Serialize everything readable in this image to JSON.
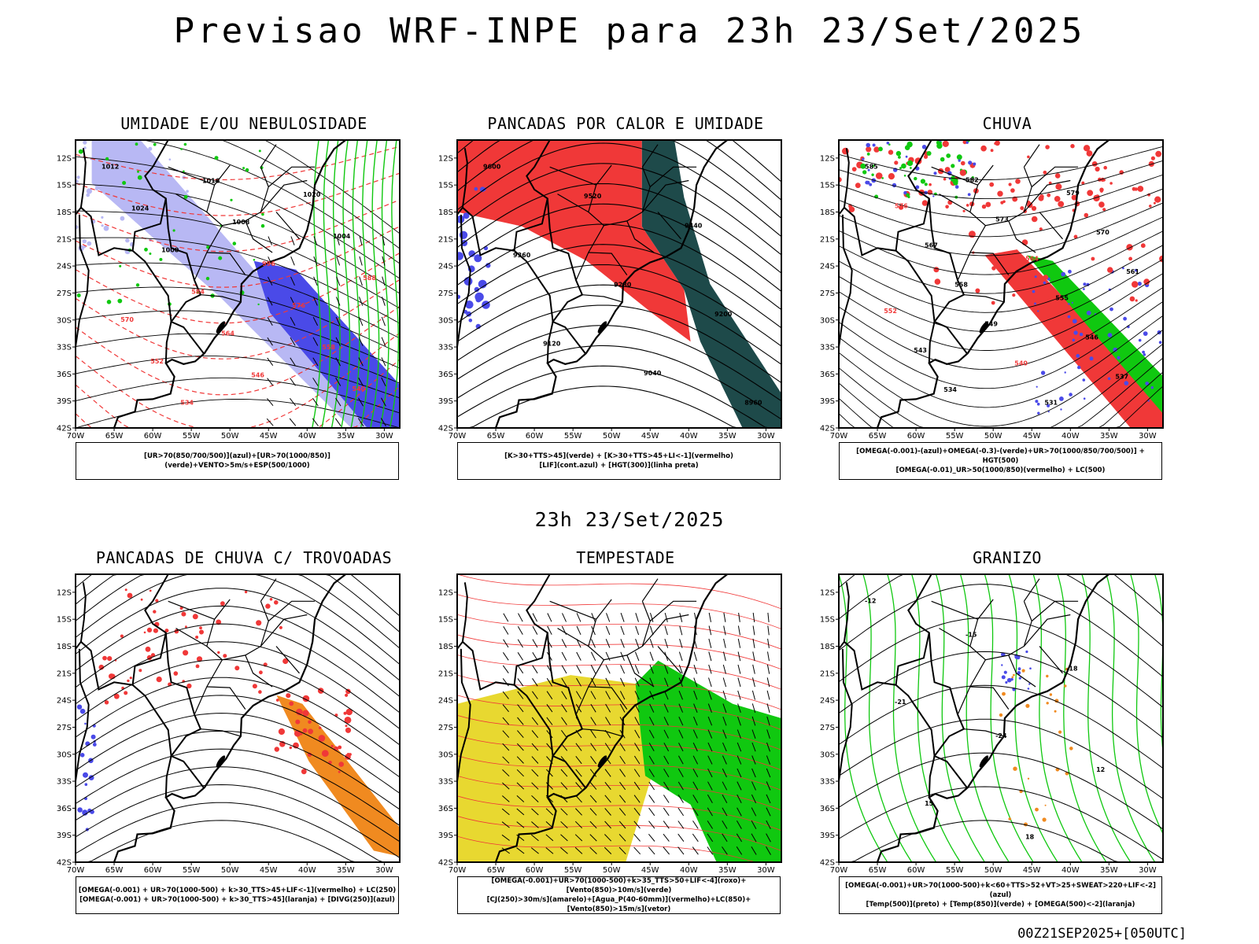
{
  "page": {
    "title": "Previsao WRF-INPE  para 23h 23/Set/2025",
    "middle_date": "23h 23/Set/2025",
    "footer_run": "00Z21SEP2025+[050UTC]"
  },
  "axes": {
    "lon_labels": [
      "70W",
      "65W",
      "60W",
      "55W",
      "50W",
      "45W",
      "40W",
      "35W",
      "30W"
    ],
    "lat_labels": [
      "12S",
      "15S",
      "18S",
      "21S",
      "24S",
      "27S",
      "30S",
      "33S",
      "36S",
      "39S",
      "42S"
    ]
  },
  "colors": {
    "light_blue": "#b8b8f4",
    "blue": "#4a4ae8",
    "green": "#10c810",
    "red": "#f03838",
    "dark_teal": "#1e4a4a",
    "yellow": "#e8d830",
    "orange": "#f08a20"
  },
  "chart_data": [
    {
      "type": "map",
      "title": "UMIDADE E/OU NEBULOSIDADE",
      "legend": [
        "[UR>70(850/700/500)](azul)+[UR>70(1000/850)](verde)+VENTO>5m/s+ESP(500/1000)"
      ],
      "contour_labels": [
        "1012",
        "1016",
        "1020",
        "1024",
        "1008",
        "1004",
        "1000",
        "996",
        "588",
        "584",
        "576",
        "570",
        "564",
        "558",
        "552",
        "546",
        "540",
        "534"
      ]
    },
    {
      "type": "map",
      "title": "PANCADAS POR CALOR E UMIDADE",
      "legend": [
        "[K>30+TTS>45](verde) + [K>30+TTS>45+LI<-1](vermelho)",
        "[LIF](cont.azul) + [HGT(300)](linha preta)"
      ],
      "contour_labels": [
        "9600",
        "9520",
        "9440",
        "9360",
        "9280",
        "9200",
        "9120",
        "9040",
        "8960"
      ]
    },
    {
      "type": "map",
      "title": "CHUVA",
      "legend": [
        "[OMEGA(-0.001)-(azul)+OMEGA(-0.3)-(verde)+UR>70(1000/850/700/500)] + HGT(500)",
        "[OMEGA(-0.01)_UR>50(1000/850)(vermelho) + LC(500)"
      ],
      "contour_labels": [
        "585",
        "582",
        "579",
        "576",
        "573",
        "570",
        "567",
        "564",
        "561",
        "558",
        "555",
        "552",
        "549",
        "546",
        "543",
        "540",
        "537",
        "534",
        "531"
      ]
    },
    {
      "type": "map",
      "title": "PANCADAS DE CHUVA C/ TROVOADAS",
      "legend": [
        "[OMEGA(-0.001) + UR>70(1000-500) + k>30_TTS>45+LIF<-1](vermelho) + LC(250)",
        "[OMEGA(-0.001) + UR>70(1000-500) + k>30_TTS>45](laranja) + [DIVG(250)](azul)"
      ],
      "contour_labels": []
    },
    {
      "type": "map",
      "title": "TEMPESTADE",
      "legend": [
        "[OMEGA(-0.001)+UR>70(1000-500)+k>35_TTS>50+LIF<-4](roxo)+[Vento(850)>10m/s](verde)",
        "[CJ(250)>30m/s](amarelo)+[Agua_P(40-60mm)](vermelho)+LC(850)+[Vento(850)>15m/s](vetor)"
      ],
      "contour_labels": []
    },
    {
      "type": "map",
      "title": "GRANIZO",
      "legend": [
        "[OMEGA(-0.001)+UR>70(1000-500)+k<60+TTS>52+VT>25+SWEAT>220+LIF<-2](azul)",
        "[Temp(500)](preto) + [Temp(850)](verde) + [OMEGA(500)<-2](laranja)"
      ],
      "contour_labels": [
        "-12",
        "-15",
        "-18",
        "-21",
        "-24",
        "12",
        "15",
        "18"
      ]
    }
  ]
}
